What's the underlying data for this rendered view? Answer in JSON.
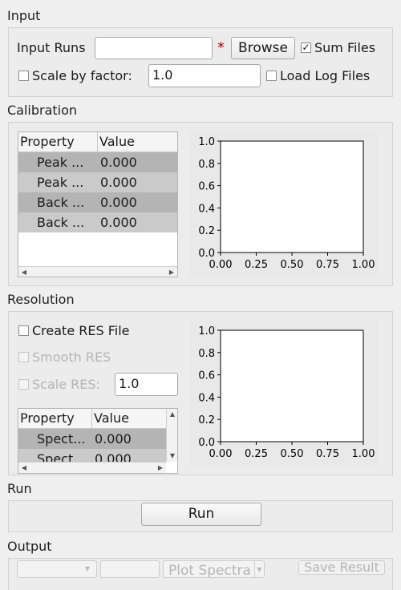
{
  "input": {
    "section_title": "Input",
    "input_runs_label": "Input Runs",
    "input_runs_value": "",
    "required_marker": "*",
    "browse_label": "Browse",
    "sum_files_label": "Sum Files",
    "sum_files_checked": "✓",
    "scale_label": "Scale by factor:",
    "scale_value": "1.0",
    "load_log_label": "Load Log Files"
  },
  "calibration": {
    "section_title": "Calibration",
    "table": {
      "headers": [
        "Property",
        "Value"
      ],
      "rows": [
        {
          "property": "Peak ...",
          "value": "0.000"
        },
        {
          "property": "Peak ...",
          "value": "0.000"
        },
        {
          "property": "Back ...",
          "value": "0.000"
        },
        {
          "property": "Back ...",
          "value": "0.000"
        }
      ]
    },
    "plot": {
      "y_ticks": [
        "1.0",
        "0.8",
        "0.6",
        "0.4",
        "0.2",
        "0.0"
      ],
      "x_ticks": [
        "0.00",
        "0.25",
        "0.50",
        "0.75",
        "1.00"
      ]
    }
  },
  "resolution": {
    "section_title": "Resolution",
    "create_res_label": "Create RES File",
    "smooth_res_label": "Smooth RES",
    "scale_res_label": "Scale RES:",
    "scale_res_value": "1.0",
    "table": {
      "headers": [
        "Property",
        "Value"
      ],
      "rows": [
        {
          "property": "Spect...",
          "value": "0.000"
        },
        {
          "property": "Spect",
          "value": "0.000"
        }
      ]
    },
    "plot": {
      "y_ticks": [
        "1.0",
        "0.8",
        "0.6",
        "0.4",
        "0.2",
        "0.0"
      ],
      "x_ticks": [
        "0.00",
        "0.25",
        "0.50",
        "0.75",
        "1.00"
      ]
    }
  },
  "run": {
    "section_title": "Run",
    "run_label": "Run"
  },
  "output": {
    "section_title": "Output",
    "plot_spectra_label": "Plot Spectra",
    "save_result_label": "Save Result"
  }
}
